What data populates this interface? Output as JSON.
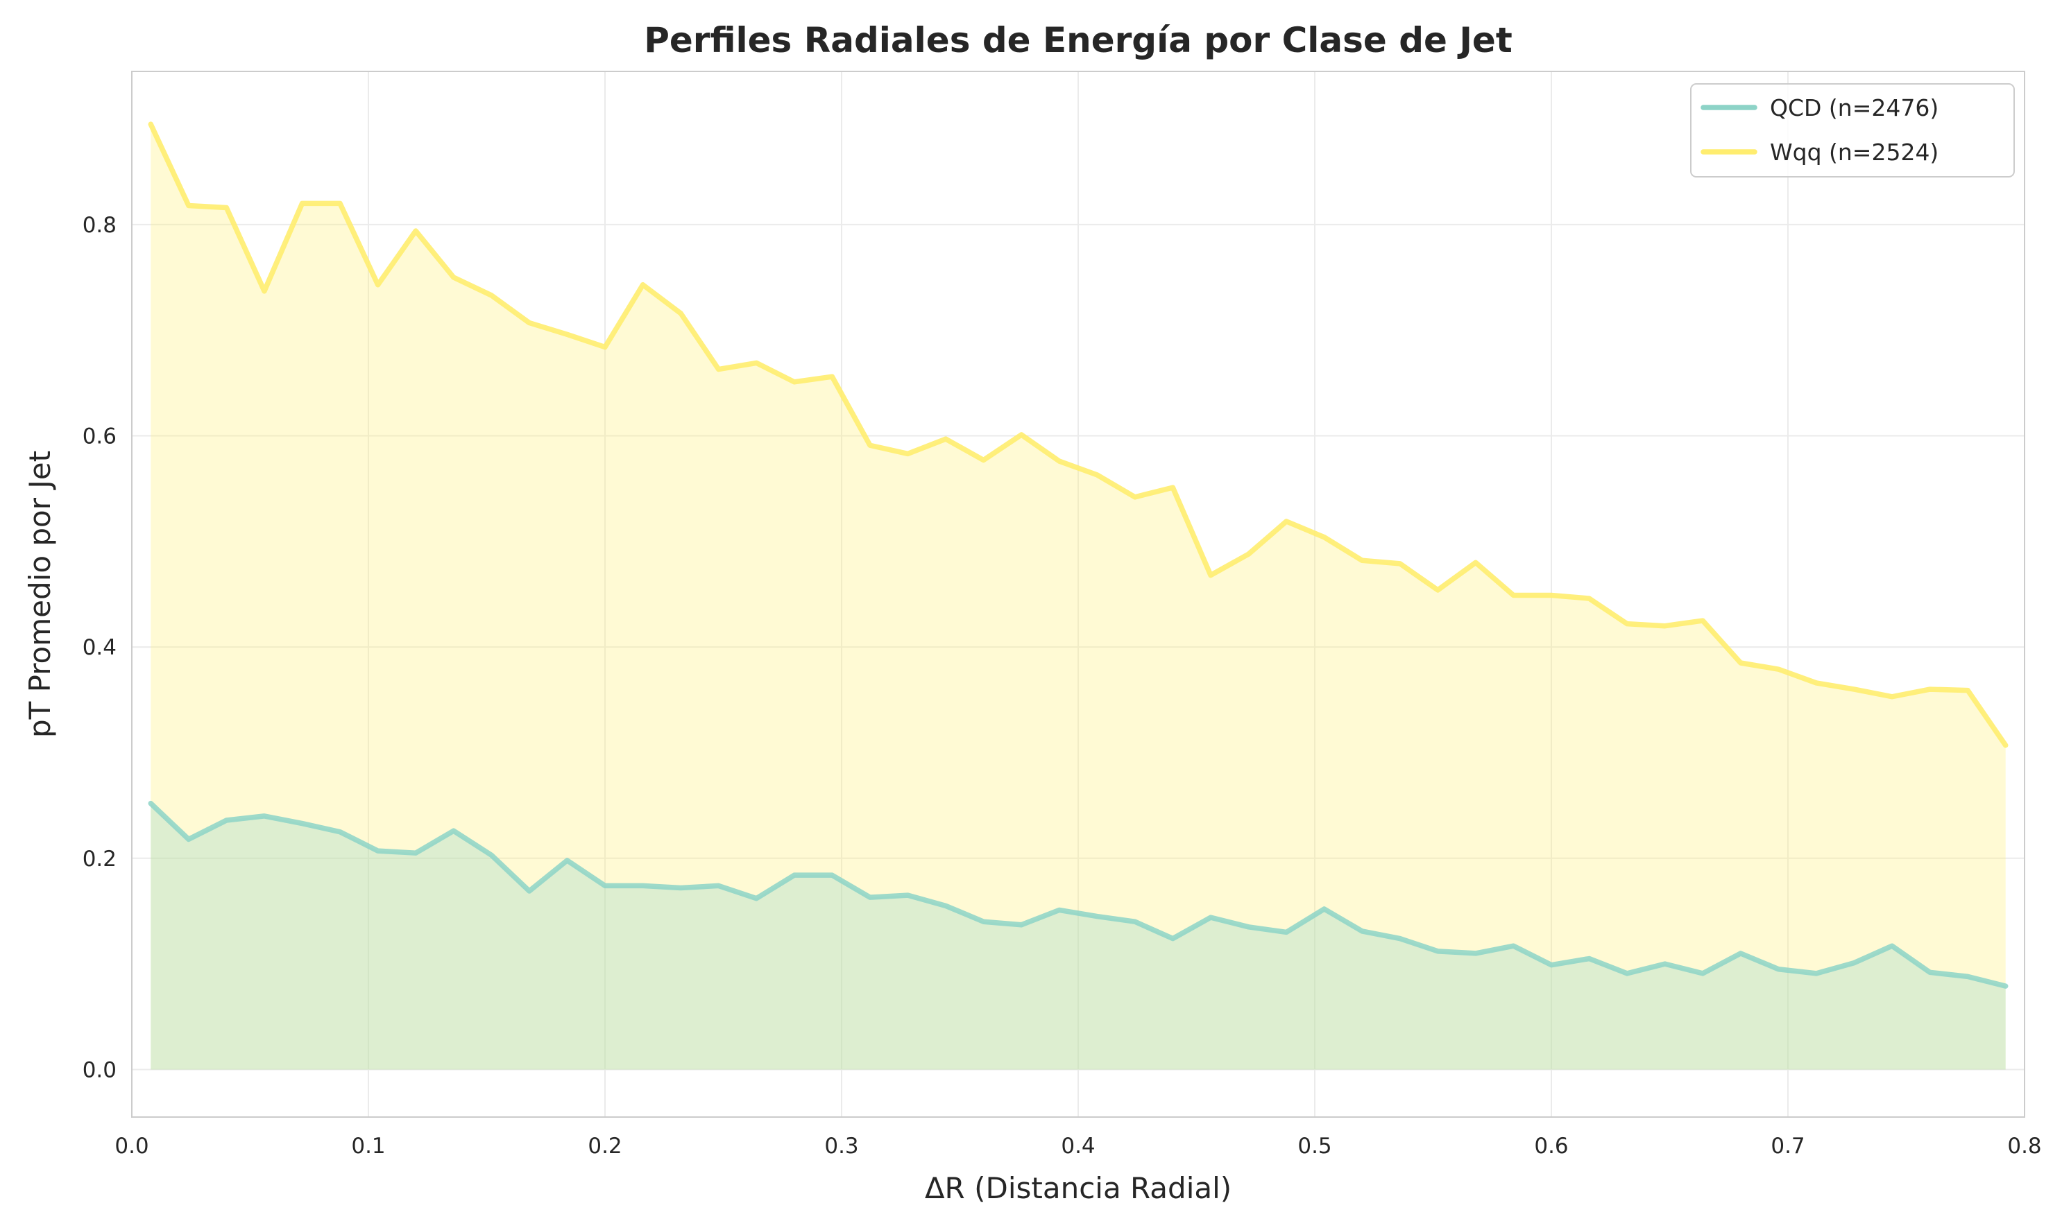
{
  "chart_data": {
    "type": "area",
    "title": "Perfiles Radiales de Energía por Clase de Jet",
    "xlabel": "ΔR (Distancia Radial)",
    "ylabel": "pT Promedio por Jet",
    "xlim": [
      0.0,
      0.8
    ],
    "ylim": [
      -0.045,
      0.945
    ],
    "xticks": [
      0.0,
      0.1,
      0.2,
      0.3,
      0.4,
      0.5,
      0.6,
      0.7,
      0.8
    ],
    "xtick_labels": [
      "0.0",
      "0.1",
      "0.2",
      "0.3",
      "0.4",
      "0.5",
      "0.6",
      "0.7",
      "0.8"
    ],
    "yticks": [
      0.0,
      0.2,
      0.4,
      0.6,
      0.8
    ],
    "ytick_labels": [
      "0.0",
      "0.2",
      "0.4",
      "0.6",
      "0.8"
    ],
    "grid": true,
    "legend_position": "top-right",
    "x": [
      0.008,
      0.024,
      0.04,
      0.056,
      0.072,
      0.088,
      0.104,
      0.12,
      0.136,
      0.152,
      0.168,
      0.184,
      0.2,
      0.216,
      0.232,
      0.248,
      0.264,
      0.28,
      0.296,
      0.312,
      0.328,
      0.344,
      0.36,
      0.376,
      0.392,
      0.408,
      0.424,
      0.44,
      0.456,
      0.472,
      0.488,
      0.504,
      0.52,
      0.536,
      0.552,
      0.568,
      0.584,
      0.6,
      0.616,
      0.632,
      0.648,
      0.664,
      0.68,
      0.696,
      0.712,
      0.728,
      0.744,
      0.76,
      0.776,
      0.792
    ],
    "series": [
      {
        "name": "QCD (n=2476)",
        "color": "#8dd3c7",
        "fill": "#e3eec7",
        "values": [
          0.252,
          0.218,
          0.236,
          0.24,
          0.233,
          0.225,
          0.207,
          0.205,
          0.226,
          0.203,
          0.169,
          0.198,
          0.174,
          0.174,
          0.172,
          0.174,
          0.162,
          0.184,
          0.184,
          0.163,
          0.165,
          0.155,
          0.14,
          0.137,
          0.151,
          0.145,
          0.14,
          0.124,
          0.144,
          0.135,
          0.13,
          0.152,
          0.131,
          0.124,
          0.112,
          0.11,
          0.117,
          0.099,
          0.105,
          0.091,
          0.1,
          0.091,
          0.11,
          0.095,
          0.091,
          0.101,
          0.117,
          0.092,
          0.088,
          0.079
        ]
      },
      {
        "name": "Wqq (n=2524)",
        "color": "#ffed6f",
        "fill": "#fff8d2",
        "values": [
          0.895,
          0.818,
          0.816,
          0.737,
          0.82,
          0.82,
          0.743,
          0.794,
          0.75,
          0.733,
          0.707,
          0.696,
          0.684,
          0.743,
          0.716,
          0.663,
          0.669,
          0.651,
          0.656,
          0.591,
          0.583,
          0.597,
          0.577,
          0.601,
          0.576,
          0.563,
          0.542,
          0.551,
          0.468,
          0.488,
          0.519,
          0.504,
          0.482,
          0.479,
          0.454,
          0.48,
          0.449,
          0.449,
          0.446,
          0.422,
          0.42,
          0.425,
          0.385,
          0.379,
          0.366,
          0.36,
          0.353,
          0.36,
          0.359,
          0.307
        ]
      }
    ]
  }
}
